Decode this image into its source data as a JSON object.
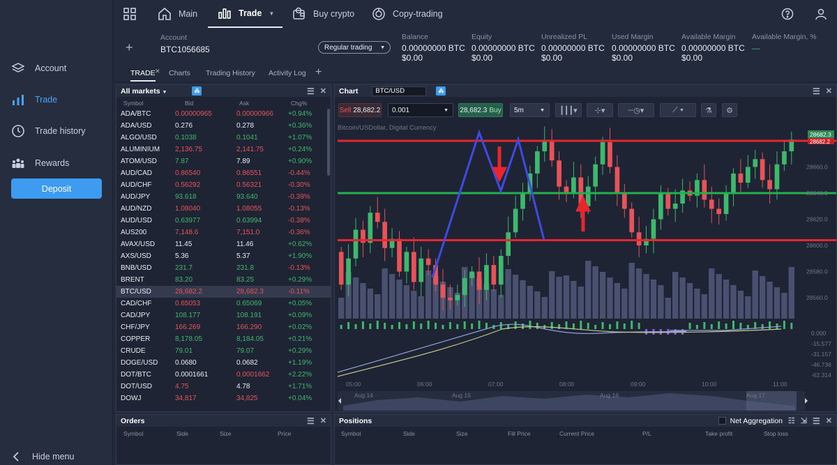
{
  "sidebar": {
    "items": [
      {
        "label": "Account",
        "icon": "layers-icon"
      },
      {
        "label": "Trade",
        "icon": "bar-chart-icon",
        "active": true
      },
      {
        "label": "Trade history",
        "icon": "clock-icon"
      },
      {
        "label": "Rewards",
        "icon": "people-icon"
      }
    ],
    "deposit": "Deposit",
    "hide_menu": "Hide menu"
  },
  "topnav": {
    "main": "Main",
    "trade": "Trade",
    "buy_crypto": "Buy crypto",
    "copy_trading": "Copy-trading"
  },
  "account": {
    "label": "Account",
    "id": "BTC1056685",
    "mode": "Regular trading",
    "stats": [
      {
        "label": "Balance",
        "value": "0.00000000 BTC",
        "sub": "$0.00"
      },
      {
        "label": "Equity",
        "value": "0.00000000 BTC",
        "sub": "$0.00"
      },
      {
        "label": "Unrealized PL",
        "value": "0.00000000 BTC",
        "sub": "$0.00"
      },
      {
        "label": "Used Margin",
        "value": "0.00000000 BTC",
        "sub": "$0.00"
      },
      {
        "label": "Available Margin",
        "value": "0.00000000 BTC",
        "sub": "$0.00"
      },
      {
        "label": "Available Margin, %",
        "value": "—",
        "sub": ""
      }
    ]
  },
  "tabs": [
    "TRADE",
    "Charts",
    "Trading History",
    "Activity Log"
  ],
  "markets": {
    "title": "All markets",
    "columns": [
      "Symbol",
      "Bid",
      "Ask",
      "Chg%"
    ],
    "rows": [
      {
        "symbol": "ADA/BTC",
        "bid": "0.00000965",
        "ask": "0.00000966",
        "chg": "+0.94%",
        "bc": "neg",
        "ac": "neg",
        "cc": "pos"
      },
      {
        "symbol": "ADA/USD",
        "bid": "0.276",
        "ask": "0.278",
        "chg": "+0.36%",
        "bc": "neu",
        "ac": "neu",
        "cc": "pos"
      },
      {
        "symbol": "ALGO/USD",
        "bid": "0.1038",
        "ask": "0.1041",
        "chg": "+1.07%",
        "bc": "pos",
        "ac": "pos",
        "cc": "pos"
      },
      {
        "symbol": "ALUMINIUM",
        "bid": "2,136.75",
        "ask": "2,141.75",
        "chg": "+0.24%",
        "bc": "neg",
        "ac": "neg",
        "cc": "pos"
      },
      {
        "symbol": "ATOM/USD",
        "bid": "7.87",
        "ask": "7.89",
        "chg": "+0.90%",
        "bc": "pos",
        "ac": "neu",
        "cc": "pos"
      },
      {
        "symbol": "AUD/CAD",
        "bid": "0.86540",
        "ask": "0.86551",
        "chg": "-0.44%",
        "bc": "neg",
        "ac": "neg",
        "cc": "neg"
      },
      {
        "symbol": "AUD/CHF",
        "bid": "0.56292",
        "ask": "0.56321",
        "chg": "-0.30%",
        "bc": "neg",
        "ac": "neg",
        "cc": "neg"
      },
      {
        "symbol": "AUD/JPY",
        "bid": "93.618",
        "ask": "93.640",
        "chg": "-0.39%",
        "bc": "pos",
        "ac": "pos",
        "cc": "neg"
      },
      {
        "symbol": "AUD/NZD",
        "bid": "1.08040",
        "ask": "1.08055",
        "chg": "-0.13%",
        "bc": "neg",
        "ac": "neg",
        "cc": "neg"
      },
      {
        "symbol": "AUD/USD",
        "bid": "0.63977",
        "ask": "0.63994",
        "chg": "-0.38%",
        "bc": "pos",
        "ac": "pos",
        "cc": "neg"
      },
      {
        "symbol": "AUS200",
        "bid": "7,148.6",
        "ask": "7,151.0",
        "chg": "-0.36%",
        "bc": "neg",
        "ac": "neg",
        "cc": "neg"
      },
      {
        "symbol": "AVAX/USD",
        "bid": "11.45",
        "ask": "11.46",
        "chg": "+0.62%",
        "bc": "neu",
        "ac": "neu",
        "cc": "pos"
      },
      {
        "symbol": "AXS/USD",
        "bid": "5.36",
        "ask": "5.37",
        "chg": "+1.90%",
        "bc": "neu",
        "ac": "neu",
        "cc": "pos"
      },
      {
        "symbol": "BNB/USD",
        "bid": "231.7",
        "ask": "231.8",
        "chg": "-0.13%",
        "bc": "pos",
        "ac": "pos",
        "cc": "neg"
      },
      {
        "symbol": "BRENT",
        "bid": "83.20",
        "ask": "83.25",
        "chg": "+0.29%",
        "bc": "pos",
        "ac": "pos",
        "cc": "pos"
      },
      {
        "symbol": "BTC/USD",
        "bid": "28,682.2",
        "ask": "28,682.3",
        "chg": "-0.11%",
        "bc": "neg",
        "ac": "neg",
        "cc": "neg",
        "selected": true
      },
      {
        "symbol": "CAD/CHF",
        "bid": "0.65053",
        "ask": "0.65069",
        "chg": "+0.05%",
        "bc": "neg",
        "ac": "pos",
        "cc": "pos"
      },
      {
        "symbol": "CAD/JPY",
        "bid": "108.177",
        "ask": "108.191",
        "chg": "+0.09%",
        "bc": "pos",
        "ac": "pos",
        "cc": "pos"
      },
      {
        "symbol": "CHF/JPY",
        "bid": "166.269",
        "ask": "166.290",
        "chg": "+0.02%",
        "bc": "neg",
        "ac": "neg",
        "cc": "pos"
      },
      {
        "symbol": "COPPER",
        "bid": "8,178.05",
        "ask": "8,184.05",
        "chg": "+0.21%",
        "bc": "pos",
        "ac": "pos",
        "cc": "pos"
      },
      {
        "symbol": "CRUDE",
        "bid": "79.01",
        "ask": "79.07",
        "chg": "+0.29%",
        "bc": "pos",
        "ac": "pos",
        "cc": "pos"
      },
      {
        "symbol": "DOGE/USD",
        "bid": "0.0680",
        "ask": "0.0682",
        "chg": "+1.19%",
        "bc": "neu",
        "ac": "neu",
        "cc": "pos"
      },
      {
        "symbol": "DOT/BTC",
        "bid": "0.0001661",
        "ask": "0.0001662",
        "chg": "+2.22%",
        "bc": "neu",
        "ac": "neg",
        "cc": "pos"
      },
      {
        "symbol": "DOT/USD",
        "bid": "4.75",
        "ask": "4.78",
        "chg": "+1.71%",
        "bc": "neg",
        "ac": "neu",
        "cc": "pos"
      },
      {
        "symbol": "DOWJ",
        "bid": "34,817",
        "ask": "34,825",
        "chg": "+0.04%",
        "bc": "neg",
        "ac": "neg",
        "cc": "pos"
      }
    ]
  },
  "chart": {
    "title": "Chart",
    "symbol": "BTC/USD",
    "sell_label": "Sell",
    "sell_price": "28,682.2",
    "quantity": "0.001",
    "buy_price": "28,682.3",
    "buy_label": "Buy",
    "interval": "5m",
    "line_style": "--",
    "instrument_desc": "Bitcoin/USDollar, Digital Currency",
    "price_axis": [
      "28660.0",
      "28640.0",
      "28620.0",
      "28600.0",
      "28580.0",
      "28560.0"
    ],
    "current_price": "28682.3",
    "price_tag2": "28682.2",
    "osc_axis": [
      "0.000",
      "-15.577",
      "-31.157",
      "-46.736",
      "-62.314"
    ],
    "time_axis": [
      "05:00",
      "06:00",
      "07:00",
      "08:00",
      "09:00",
      "10:00",
      "11:00"
    ],
    "nav_dates": [
      "Aug 14",
      "Aug 15",
      "Aug 16",
      "Aug 17"
    ],
    "levels": [
      {
        "name": "resistance",
        "price": 28680,
        "color": "#e8262f"
      },
      {
        "name": "middle",
        "price": 28640,
        "color": "#22b14c"
      },
      {
        "name": "support",
        "price": 28604,
        "color": "#e8262f"
      }
    ],
    "colors": {
      "up": "#3fb76c",
      "down": "#e6545a",
      "pattern": "#3f4be0",
      "arrow": "#e8262f"
    }
  },
  "orders": {
    "title": "Orders",
    "columns": [
      "Symbol",
      "Side",
      "Size",
      "Price"
    ]
  },
  "positions": {
    "title": "Positions",
    "net_aggregation": "Net Aggregation",
    "columns": [
      "Symbol",
      "Side",
      "Size",
      "Fill Price",
      "Current Price",
      "P/L",
      "Take profit",
      "Stop loss"
    ]
  }
}
